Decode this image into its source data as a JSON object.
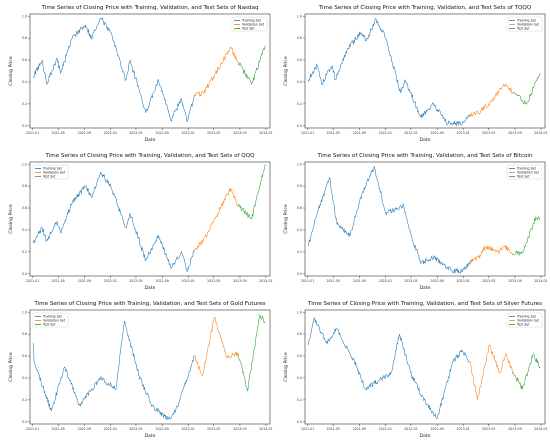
{
  "chart_data": [
    {
      "type": "line",
      "title": "Time Series of Closing Price with Training, Validation, and Test Sets of Nasdaq",
      "xlabel": "Date",
      "ylabel": "Closing Price",
      "ylim": [
        -0.02,
        1.02
      ],
      "yticks": [
        "0.0",
        "0.2",
        "0.4",
        "0.6",
        "0.8",
        "1.0"
      ],
      "xlim": [
        "2020-12-20",
        "2024-01-20"
      ],
      "xticks": [
        {
          "date": "2021-01-01",
          "label": "2021-01"
        },
        {
          "date": "2021-05-01",
          "label": "2021-05"
        },
        {
          "date": "2021-09-01",
          "label": "2021-09"
        },
        {
          "date": "2022-01-01",
          "label": "2022-01"
        },
        {
          "date": "2022-05-01",
          "label": "2022-05"
        },
        {
          "date": "2022-09-01",
          "label": "2022-09"
        },
        {
          "date": "2023-01-01",
          "label": "2023-01"
        },
        {
          "date": "2023-05-01",
          "label": "2023-05"
        },
        {
          "date": "2023-09-01",
          "label": "2023-09"
        },
        {
          "date": "2024-01-01",
          "label": "2024-01"
        }
      ],
      "legend_position": "top-right",
      "grid": false,
      "series": [
        {
          "name": "Training Set",
          "color": "#1f77b4",
          "x": [
            "2021-01-04",
            "2021-02-15",
            "2021-03-08",
            "2021-04-26",
            "2021-05-12",
            "2021-07-06",
            "2021-09-07",
            "2021-10-04",
            "2021-11-19",
            "2022-01-03",
            "2022-03-14",
            "2022-04-04",
            "2022-06-16",
            "2022-08-15",
            "2022-10-13",
            "2022-11-30",
            "2022-12-28",
            "2023-01-31"
          ],
          "y": [
            0.45,
            0.6,
            0.38,
            0.62,
            0.48,
            0.8,
            0.92,
            0.8,
            0.98,
            0.85,
            0.42,
            0.6,
            0.12,
            0.42,
            0.05,
            0.25,
            0.04,
            0.28
          ]
        },
        {
          "name": "Validation Set",
          "color": "#ff7f0e",
          "x": [
            "2023-01-31",
            "2023-03-13",
            "2023-05-01",
            "2023-07-19",
            "2023-08-24"
          ],
          "y": [
            0.28,
            0.3,
            0.45,
            0.72,
            0.58
          ]
        },
        {
          "name": "Test Set",
          "color": "#2ca02c",
          "x": [
            "2023-08-24",
            "2023-10-26",
            "2023-12-28"
          ],
          "y": [
            0.58,
            0.38,
            0.73
          ]
        }
      ]
    },
    {
      "type": "line",
      "title": "Time Series of Closing Price with Training, Validation, and Test Sets of TQQQ",
      "xlabel": "Date",
      "ylabel": "Closing Price",
      "ylim": [
        -0.02,
        1.02
      ],
      "yticks": [
        "0.0",
        "0.2",
        "0.4",
        "0.6",
        "0.8",
        "1.0"
      ],
      "xlim": [
        "2020-12-20",
        "2024-01-20"
      ],
      "xticks": [
        {
          "date": "2021-01-01",
          "label": "2021-01"
        },
        {
          "date": "2021-05-01",
          "label": "2021-05"
        },
        {
          "date": "2021-09-01",
          "label": "2021-09"
        },
        {
          "date": "2022-01-01",
          "label": "2022-01"
        },
        {
          "date": "2022-05-01",
          "label": "2022-05"
        },
        {
          "date": "2022-09-01",
          "label": "2022-09"
        },
        {
          "date": "2023-01-01",
          "label": "2023-01"
        },
        {
          "date": "2023-05-01",
          "label": "2023-05"
        },
        {
          "date": "2023-09-01",
          "label": "2023-09"
        },
        {
          "date": "2024-01-01",
          "label": "2024-01"
        }
      ],
      "legend_position": "top-right",
      "grid": false,
      "series": [
        {
          "name": "Training Set",
          "color": "#1f77b4",
          "x": [
            "2021-01-04",
            "2021-02-15",
            "2021-03-08",
            "2021-04-26",
            "2021-05-12",
            "2021-07-06",
            "2021-09-07",
            "2021-10-04",
            "2021-11-19",
            "2022-01-03",
            "2022-03-14",
            "2022-04-04",
            "2022-06-16",
            "2022-08-15",
            "2022-10-13",
            "2022-12-28",
            "2023-01-31"
          ],
          "y": [
            0.42,
            0.55,
            0.38,
            0.55,
            0.42,
            0.7,
            0.85,
            0.78,
            0.97,
            0.8,
            0.3,
            0.42,
            0.08,
            0.2,
            0.03,
            0.02,
            0.1
          ]
        },
        {
          "name": "Validation Set",
          "color": "#ff7f0e",
          "x": [
            "2023-01-31",
            "2023-03-13",
            "2023-05-01",
            "2023-07-19",
            "2023-08-24"
          ],
          "y": [
            0.1,
            0.12,
            0.2,
            0.38,
            0.3
          ]
        },
        {
          "name": "Test Set",
          "color": "#2ca02c",
          "x": [
            "2023-08-24",
            "2023-10-26",
            "2023-12-28"
          ],
          "y": [
            0.3,
            0.2,
            0.48
          ]
        }
      ]
    },
    {
      "type": "line",
      "title": "Time Series of Closing Price with Training, Validation, and Test Sets of QQQ",
      "xlabel": "Date",
      "ylabel": "Closing Price",
      "ylim": [
        -0.02,
        1.02
      ],
      "yticks": [
        "0.0",
        "0.2",
        "0.4",
        "0.6",
        "0.8",
        "1.0"
      ],
      "xlim": [
        "2020-12-20",
        "2024-01-20"
      ],
      "xticks": [
        {
          "date": "2021-01-01",
          "label": "2021-01"
        },
        {
          "date": "2021-05-01",
          "label": "2021-05"
        },
        {
          "date": "2021-09-01",
          "label": "2021-09"
        },
        {
          "date": "2022-01-01",
          "label": "2022-01"
        },
        {
          "date": "2022-05-01",
          "label": "2022-05"
        },
        {
          "date": "2022-09-01",
          "label": "2022-09"
        },
        {
          "date": "2023-01-01",
          "label": "2023-01"
        },
        {
          "date": "2023-05-01",
          "label": "2023-05"
        },
        {
          "date": "2023-09-01",
          "label": "2023-09"
        },
        {
          "date": "2024-01-01",
          "label": "2024-01"
        }
      ],
      "legend_position": "top-left",
      "grid": false,
      "series": [
        {
          "name": "Training Set",
          "color": "#1f77b4",
          "x": [
            "2021-01-04",
            "2021-02-15",
            "2021-03-08",
            "2021-04-26",
            "2021-05-12",
            "2021-07-06",
            "2021-09-07",
            "2021-10-04",
            "2021-11-19",
            "2022-01-03",
            "2022-03-14",
            "2022-04-04",
            "2022-06-16",
            "2022-08-15",
            "2022-10-13",
            "2022-11-30",
            "2022-12-28",
            "2023-01-31"
          ],
          "y": [
            0.28,
            0.42,
            0.3,
            0.48,
            0.38,
            0.65,
            0.8,
            0.7,
            0.92,
            0.8,
            0.42,
            0.55,
            0.12,
            0.35,
            0.05,
            0.2,
            0.02,
            0.22
          ]
        },
        {
          "name": "Validation Set",
          "color": "#ff7f0e",
          "x": [
            "2023-01-31",
            "2023-03-13",
            "2023-05-01",
            "2023-07-19",
            "2023-08-24"
          ],
          "y": [
            0.22,
            0.3,
            0.48,
            0.78,
            0.62
          ]
        },
        {
          "name": "Test Set",
          "color": "#2ca02c",
          "x": [
            "2023-08-24",
            "2023-10-26",
            "2023-12-28"
          ],
          "y": [
            0.62,
            0.5,
            1.0
          ]
        }
      ]
    },
    {
      "type": "line",
      "title": "Time Series of Closing Price with Training, Validation, and Test Sets of Bitcoin",
      "xlabel": "Date",
      "ylabel": "Closing Price",
      "ylim": [
        -0.02,
        1.02
      ],
      "yticks": [
        "0.0",
        "0.2",
        "0.4",
        "0.6",
        "0.8",
        "1.0"
      ],
      "xlim": [
        "2020-12-20",
        "2024-01-20"
      ],
      "xticks": [
        {
          "date": "2021-01-01",
          "label": "2021-01"
        },
        {
          "date": "2021-05-01",
          "label": "2021-05"
        },
        {
          "date": "2021-09-01",
          "label": "2021-09"
        },
        {
          "date": "2022-01-01",
          "label": "2022-01"
        },
        {
          "date": "2022-05-01",
          "label": "2022-05"
        },
        {
          "date": "2022-09-01",
          "label": "2022-09"
        },
        {
          "date": "2023-01-01",
          "label": "2023-01"
        },
        {
          "date": "2023-05-01",
          "label": "2023-05"
        },
        {
          "date": "2023-09-01",
          "label": "2023-09"
        },
        {
          "date": "2024-01-01",
          "label": "2024-01"
        }
      ],
      "legend_position": "top-right",
      "grid": false,
      "series": [
        {
          "name": "Training Set",
          "color": "#1f77b4",
          "x": [
            "2021-01-04",
            "2021-02-15",
            "2021-04-14",
            "2021-05-19",
            "2021-07-20",
            "2021-09-07",
            "2021-11-10",
            "2022-01-03",
            "2022-03-28",
            "2022-05-10",
            "2022-06-18",
            "2022-08-15",
            "2022-11-09",
            "2022-12-28",
            "2023-01-31"
          ],
          "y": [
            0.25,
            0.55,
            0.88,
            0.45,
            0.35,
            0.7,
            0.98,
            0.55,
            0.62,
            0.3,
            0.1,
            0.15,
            0.03,
            0.02,
            0.1
          ]
        },
        {
          "name": "Validation Set",
          "color": "#ff7f0e",
          "x": [
            "2023-01-31",
            "2023-03-13",
            "2023-04-14",
            "2023-06-15",
            "2023-07-13",
            "2023-08-24"
          ],
          "y": [
            0.1,
            0.15,
            0.25,
            0.2,
            0.25,
            0.18
          ]
        },
        {
          "name": "Test Set",
          "color": "#2ca02c",
          "x": [
            "2023-08-24",
            "2023-10-10",
            "2023-12-08",
            "2023-12-28"
          ],
          "y": [
            0.18,
            0.2,
            0.52,
            0.5
          ]
        }
      ]
    },
    {
      "type": "line",
      "title": "Time Series of Closing Price with Training, Validation, and Test Sets of Gold Futures",
      "xlabel": "Date",
      "ylabel": "Closing Price",
      "ylim": [
        -0.02,
        1.02
      ],
      "yticks": [
        "0.0",
        "0.2",
        "0.4",
        "0.6",
        "0.8",
        "1.0"
      ],
      "xlim": [
        "2020-12-20",
        "2024-01-20"
      ],
      "xticks": [
        {
          "date": "2021-01-01",
          "label": "2021-01"
        },
        {
          "date": "2021-05-01",
          "label": "2021-05"
        },
        {
          "date": "2021-09-01",
          "label": "2021-09"
        },
        {
          "date": "2022-01-01",
          "label": "2022-01"
        },
        {
          "date": "2022-05-01",
          "label": "2022-05"
        },
        {
          "date": "2022-09-01",
          "label": "2022-09"
        },
        {
          "date": "2023-01-01",
          "label": "2023-01"
        },
        {
          "date": "2023-05-01",
          "label": "2023-05"
        },
        {
          "date": "2023-09-01",
          "label": "2023-09"
        },
        {
          "date": "2024-01-01",
          "label": "2024-01"
        }
      ],
      "legend_position": "top-left",
      "grid": false,
      "series": [
        {
          "name": "Training Set",
          "color": "#1f77b4",
          "x": [
            "2021-01-04",
            "2021-01-08",
            "2021-03-30",
            "2021-05-31",
            "2021-08-09",
            "2021-11-15",
            "2022-01-28",
            "2022-03-08",
            "2022-05-16",
            "2022-07-15",
            "2022-09-28",
            "2022-11-03",
            "2022-12-28",
            "2023-01-31"
          ],
          "y": [
            0.72,
            0.55,
            0.1,
            0.5,
            0.15,
            0.4,
            0.3,
            0.92,
            0.42,
            0.15,
            0.02,
            0.1,
            0.4,
            0.6
          ]
        },
        {
          "name": "Validation Set",
          "color": "#ff7f0e",
          "x": [
            "2023-01-31",
            "2023-03-09",
            "2023-05-04",
            "2023-06-29",
            "2023-08-24"
          ],
          "y": [
            0.6,
            0.42,
            0.95,
            0.6,
            0.62
          ]
        },
        {
          "name": "Test Set",
          "color": "#2ca02c",
          "x": [
            "2023-08-24",
            "2023-10-06",
            "2023-12-04",
            "2023-12-28"
          ],
          "y": [
            0.62,
            0.28,
            0.98,
            0.9
          ]
        }
      ]
    },
    {
      "type": "line",
      "title": "Time Series of Closing Price with Training, Validation, and Test Sets of Silver Futures",
      "xlabel": "Date",
      "ylabel": "Closing Price",
      "ylim": [
        -0.02,
        1.02
      ],
      "yticks": [
        "0.0",
        "0.2",
        "0.4",
        "0.6",
        "0.8",
        "1.0"
      ],
      "xlim": [
        "2020-12-20",
        "2024-01-20"
      ],
      "xticks": [
        {
          "date": "2021-01-01",
          "label": "2021-01"
        },
        {
          "date": "2021-05-01",
          "label": "2021-05"
        },
        {
          "date": "2021-09-01",
          "label": "2021-09"
        },
        {
          "date": "2022-01-01",
          "label": "2022-01"
        },
        {
          "date": "2022-05-01",
          "label": "2022-05"
        },
        {
          "date": "2022-09-01",
          "label": "2022-09"
        },
        {
          "date": "2023-01-01",
          "label": "2023-01"
        },
        {
          "date": "2023-05-01",
          "label": "2023-05"
        },
        {
          "date": "2023-09-01",
          "label": "2023-09"
        },
        {
          "date": "2024-01-01",
          "label": "2024-01"
        }
      ],
      "legend_position": "top-right",
      "grid": false,
      "series": [
        {
          "name": "Training Set",
          "color": "#1f77b4",
          "x": [
            "2021-01-04",
            "2021-02-01",
            "2021-03-30",
            "2021-05-18",
            "2021-08-09",
            "2021-09-29",
            "2022-01-28",
            "2022-03-08",
            "2022-04-29",
            "2022-06-16",
            "2022-09-01",
            "2022-11-15",
            "2022-12-28",
            "2023-01-31"
          ],
          "y": [
            0.7,
            0.95,
            0.72,
            0.85,
            0.55,
            0.3,
            0.45,
            0.8,
            0.45,
            0.25,
            0.03,
            0.55,
            0.65,
            0.55
          ]
        },
        {
          "name": "Validation Set",
          "color": "#ff7f0e",
          "x": [
            "2023-01-31",
            "2023-03-09",
            "2023-05-04",
            "2023-06-22",
            "2023-07-19",
            "2023-08-24"
          ],
          "y": [
            0.55,
            0.2,
            0.7,
            0.45,
            0.62,
            0.45
          ]
        },
        {
          "name": "Test Set",
          "color": "#2ca02c",
          "x": [
            "2023-08-24",
            "2023-10-06",
            "2023-11-25",
            "2023-12-28"
          ],
          "y": [
            0.45,
            0.3,
            0.62,
            0.5
          ]
        }
      ]
    }
  ]
}
